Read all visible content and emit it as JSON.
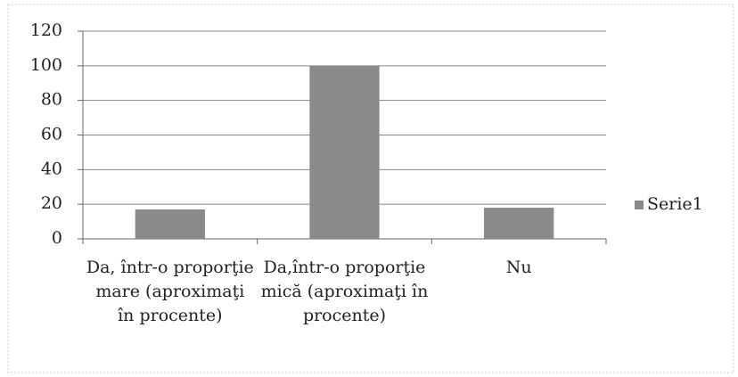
{
  "chart_data": {
    "type": "bar",
    "categories": [
      "Da, într-o proporţie mare (aproximaţi în procente)",
      "Da,într-o proporţie mică (aproximaţi în procente)",
      "Nu"
    ],
    "series": [
      {
        "name": "Serie1",
        "color": "#8a8a8a",
        "values": [
          17,
          100,
          18
        ]
      }
    ],
    "ylim": [
      0,
      120
    ],
    "yticks": [
      0,
      20,
      40,
      60,
      80,
      100,
      120
    ],
    "grid": true,
    "legend": "right"
  }
}
